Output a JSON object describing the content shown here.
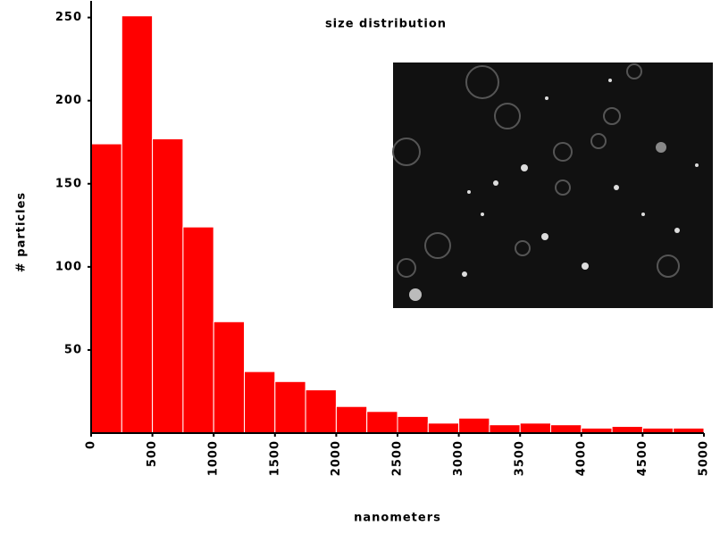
{
  "chart_data": {
    "type": "histogram",
    "title": "size distribution",
    "x_label": "nanometers",
    "y_label": "# particles",
    "bins": [
      0,
      250,
      500,
      750,
      1000,
      1250,
      1500,
      1750,
      2000,
      2250,
      2500,
      2750,
      3000,
      3250,
      3500,
      3750,
      4000,
      4250,
      4500,
      4750,
      5000
    ],
    "values": [
      174,
      251,
      177,
      124,
      67,
      37,
      31,
      26,
      16,
      13,
      10,
      6,
      9,
      5,
      6,
      5,
      3,
      4,
      3,
      3
    ],
    "color": "#ff0000",
    "xlim": [
      0,
      5000
    ],
    "xticks": [
      0,
      500,
      1000,
      1500,
      2000,
      2500,
      3000,
      3500,
      4000,
      4500,
      5000
    ],
    "ylim": [
      0,
      260
    ],
    "yticks": [
      50,
      100,
      150,
      200,
      250
    ]
  }
}
